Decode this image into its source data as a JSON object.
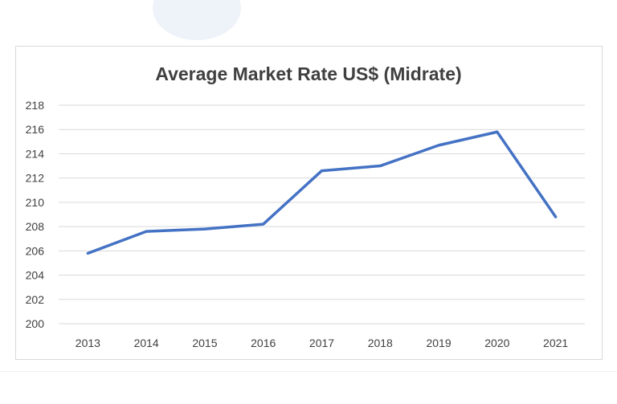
{
  "chart_data": {
    "type": "line",
    "title": "Average Market Rate US$ (Midrate)",
    "xlabel": "",
    "ylabel": "",
    "categories": [
      "2013",
      "2014",
      "2015",
      "2016",
      "2017",
      "2018",
      "2019",
      "2020",
      "2021"
    ],
    "series": [
      {
        "values": [
          205.8,
          207.6,
          207.8,
          208.2,
          212.6,
          213.0,
          214.7,
          215.8,
          208.8
        ],
        "color": "#4472c4"
      }
    ],
    "ylim": [
      200,
      218
    ],
    "yticks": [
      200,
      202,
      204,
      206,
      208,
      210,
      212,
      214,
      216,
      218
    ],
    "grid": true,
    "legend": "none"
  }
}
